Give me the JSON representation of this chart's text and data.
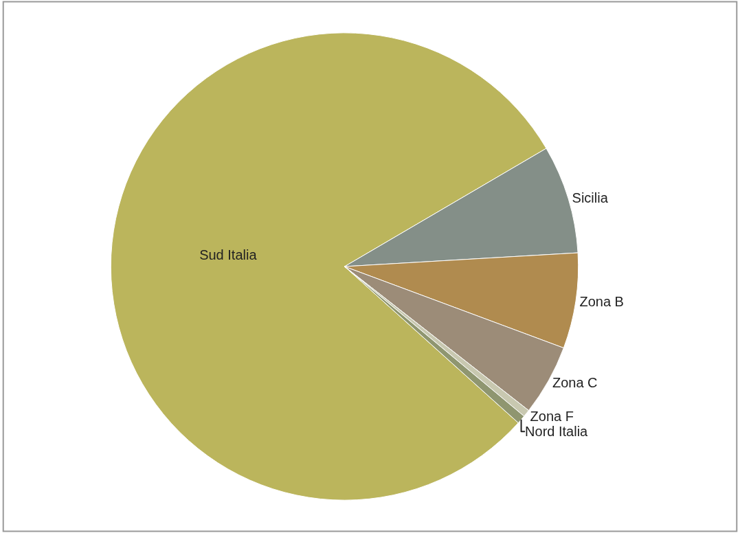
{
  "chart_data": {
    "type": "pie",
    "categories": [
      "Sud Italia",
      "Sicilia",
      "Zona B",
      "Zona C",
      "Zona F",
      "Nord Italia"
    ],
    "values": [
      79.9,
      7.5,
      6.6,
      4.9,
      0.5,
      0.6
    ],
    "colors": [
      "#bbb55c",
      "#848f88",
      "#b08b4f",
      "#9c8c78",
      "#c8c8b0",
      "#8f9670"
    ]
  }
}
